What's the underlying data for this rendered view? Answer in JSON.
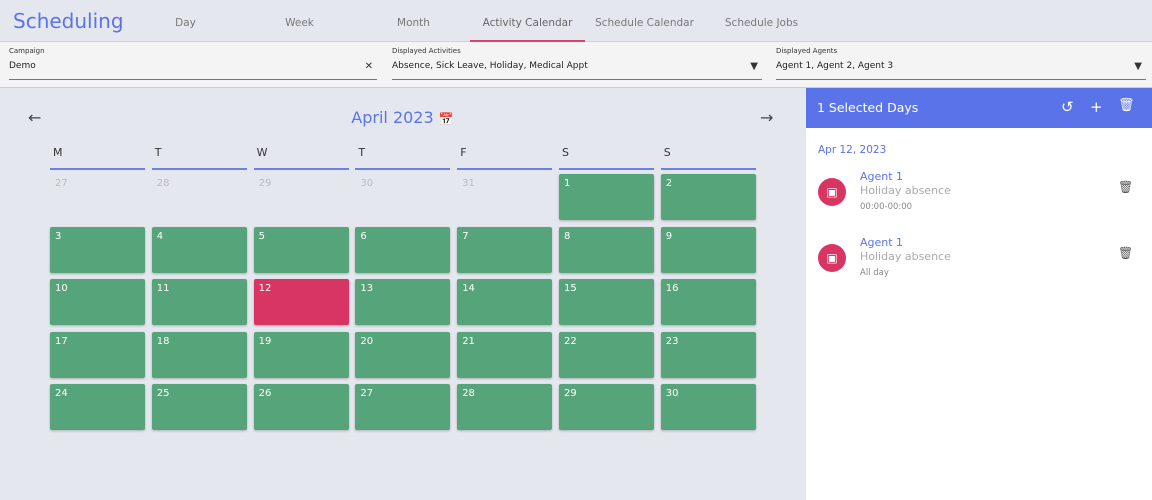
{
  "app": {
    "title": "Scheduling"
  },
  "tabs": [
    {
      "label": "Day"
    },
    {
      "label": "Week"
    },
    {
      "label": "Month"
    },
    {
      "label": "Activity Calendar",
      "active": true
    },
    {
      "label": "Schedule Calendar"
    },
    {
      "label": "Schedule Jobs"
    }
  ],
  "filters": {
    "campaign": {
      "label": "Campaign",
      "value": "Demo"
    },
    "activities": {
      "label": "Displayed Activities",
      "value": "Absence, Sick Leave, Holiday, Medical Appt"
    },
    "agents": {
      "label": "Displayed Agents",
      "value": "Agent 1, Agent 2, Agent 3"
    }
  },
  "calendar": {
    "month": "April 2023",
    "weekdays": [
      "M",
      "T",
      "W",
      "T",
      "F",
      "S",
      "S"
    ],
    "weeks": [
      [
        {
          "d": "27",
          "s": "out"
        },
        {
          "d": "28",
          "s": "out"
        },
        {
          "d": "29",
          "s": "out"
        },
        {
          "d": "30",
          "s": "out"
        },
        {
          "d": "31",
          "s": "out"
        },
        {
          "d": "1",
          "s": "avail"
        },
        {
          "d": "2",
          "s": "avail"
        }
      ],
      [
        {
          "d": "3",
          "s": "avail"
        },
        {
          "d": "4",
          "s": "avail"
        },
        {
          "d": "5",
          "s": "avail"
        },
        {
          "d": "6",
          "s": "avail"
        },
        {
          "d": "7",
          "s": "avail"
        },
        {
          "d": "8",
          "s": "avail"
        },
        {
          "d": "9",
          "s": "avail"
        }
      ],
      [
        {
          "d": "10",
          "s": "avail"
        },
        {
          "d": "11",
          "s": "avail"
        },
        {
          "d": "12",
          "s": "selected"
        },
        {
          "d": "13",
          "s": "avail"
        },
        {
          "d": "14",
          "s": "avail"
        },
        {
          "d": "15",
          "s": "avail"
        },
        {
          "d": "16",
          "s": "avail"
        }
      ],
      [
        {
          "d": "17",
          "s": "avail"
        },
        {
          "d": "18",
          "s": "avail"
        },
        {
          "d": "19",
          "s": "avail"
        },
        {
          "d": "20",
          "s": "avail"
        },
        {
          "d": "21",
          "s": "avail"
        },
        {
          "d": "22",
          "s": "avail"
        },
        {
          "d": "23",
          "s": "avail"
        }
      ],
      [
        {
          "d": "24",
          "s": "avail"
        },
        {
          "d": "25",
          "s": "avail"
        },
        {
          "d": "26",
          "s": "avail"
        },
        {
          "d": "27",
          "s": "avail"
        },
        {
          "d": "28",
          "s": "avail"
        },
        {
          "d": "29",
          "s": "avail"
        },
        {
          "d": "30",
          "s": "avail"
        }
      ]
    ]
  },
  "panel": {
    "title": "1 Selected Days",
    "date": "Apr 12, 2023",
    "entries": [
      {
        "agent": "Agent 1",
        "type": "Holiday absence",
        "time": "00:00-00:00"
      },
      {
        "agent": "Agent 1",
        "type": "Holiday absence",
        "time": "All day"
      }
    ]
  },
  "colors": {
    "accent": "#5b73e8",
    "available": "#56a57a",
    "selected": "#d93563"
  }
}
